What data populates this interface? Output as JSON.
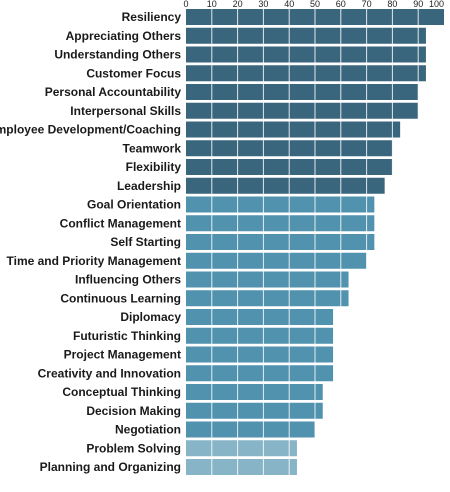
{
  "chart_data": {
    "type": "bar",
    "orientation": "horizontal",
    "xlim": [
      0,
      100
    ],
    "x_ticks": [
      "0",
      "10",
      "20",
      "30",
      "40",
      "50",
      "60",
      "70",
      "80",
      "90",
      "100"
    ],
    "x_tick_values": [
      0,
      10,
      20,
      30,
      40,
      50,
      60,
      70,
      80,
      90,
      100
    ],
    "grid": true,
    "categories": [
      "Resiliency",
      "Appreciating Others",
      "Understanding Others",
      "Customer Focus",
      "Personal Accountability",
      "Interpersonal Skills",
      "Employee Development/Coaching",
      "Teamwork",
      "Flexibility",
      "Leadership",
      "Goal Orientation",
      "Conflict Management",
      "Self Starting",
      "Time and Priority Management",
      "Influencing Others",
      "Continuous Learning",
      "Diplomacy",
      "Futuristic Thinking",
      "Project Management",
      "Creativity and Innovation",
      "Conceptual Thinking",
      "Decision Making",
      "Negotiation",
      "Problem Solving",
      "Planning and Organizing"
    ],
    "values": [
      100,
      93,
      93,
      93,
      90,
      90,
      83,
      80,
      80,
      77,
      73,
      73,
      73,
      70,
      63,
      63,
      57,
      57,
      57,
      57,
      53,
      53,
      50,
      43,
      43
    ],
    "bar_colors": [
      "#39667d",
      "#39667d",
      "#39667d",
      "#39667d",
      "#39667d",
      "#39667d",
      "#39667d",
      "#39667d",
      "#39667d",
      "#39667d",
      "#5192ae",
      "#5192ae",
      "#5192ae",
      "#5192ae",
      "#5192ae",
      "#5192ae",
      "#5192ae",
      "#5192ae",
      "#5192ae",
      "#5192ae",
      "#5192ae",
      "#5192ae",
      "#5192ae",
      "#87b4c6",
      "#87b4c6"
    ]
  }
}
